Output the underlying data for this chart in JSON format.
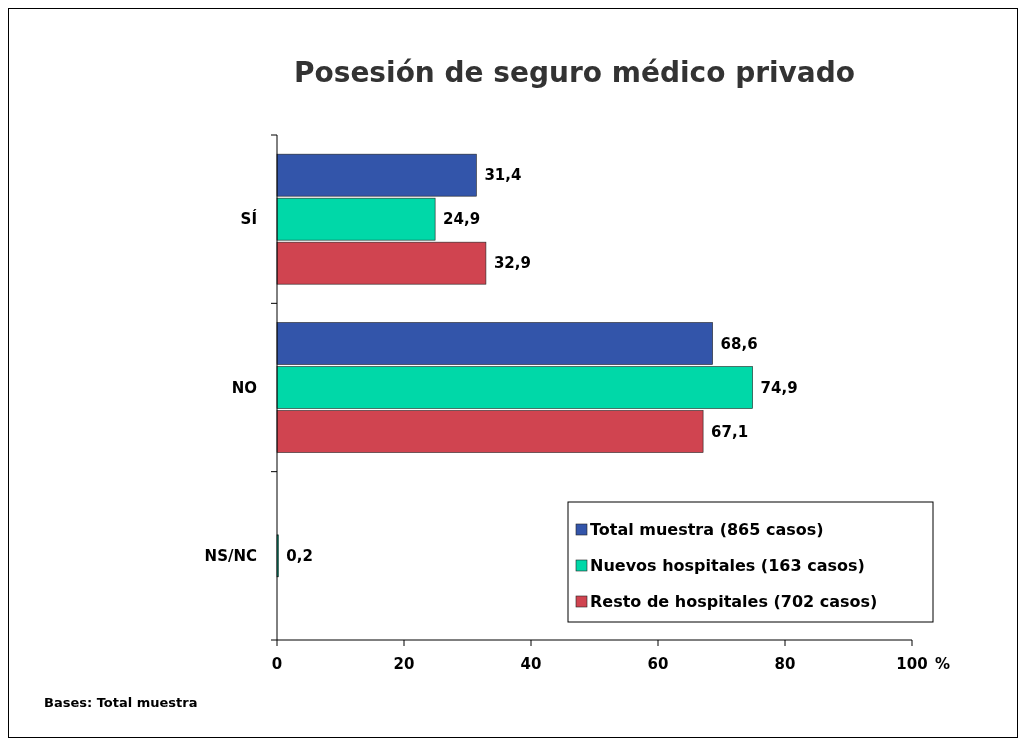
{
  "chart_data": {
    "type": "bar",
    "orientation": "horizontal",
    "title": "Posesión de seguro médico privado",
    "xlabel": "%",
    "categories": [
      "SÍ",
      "NO",
      "NS/NC"
    ],
    "series": [
      {
        "name": "Total muestra (865 casos)",
        "color": "#3355aa",
        "values": [
          31.4,
          68.6,
          null
        ],
        "value_labels": [
          "31,4",
          "68,6",
          null
        ]
      },
      {
        "name": "Nuevos hospitales (163 casos)",
        "color": "#00d8a8",
        "values": [
          24.9,
          74.9,
          0.2
        ],
        "value_labels": [
          "24,9",
          "74,9",
          "0,2"
        ]
      },
      {
        "name": "Resto de hospitales (702 casos)",
        "color": "#d04450",
        "values": [
          32.9,
          67.1,
          null
        ],
        "value_labels": [
          "32,9",
          "67,1",
          null
        ]
      }
    ],
    "xlim": [
      0,
      100
    ],
    "xticks": [
      0,
      20,
      40,
      60,
      80,
      100
    ],
    "grid": false,
    "legend": "bottom right",
    "annotations": [
      "Bases: Total muestra"
    ]
  }
}
